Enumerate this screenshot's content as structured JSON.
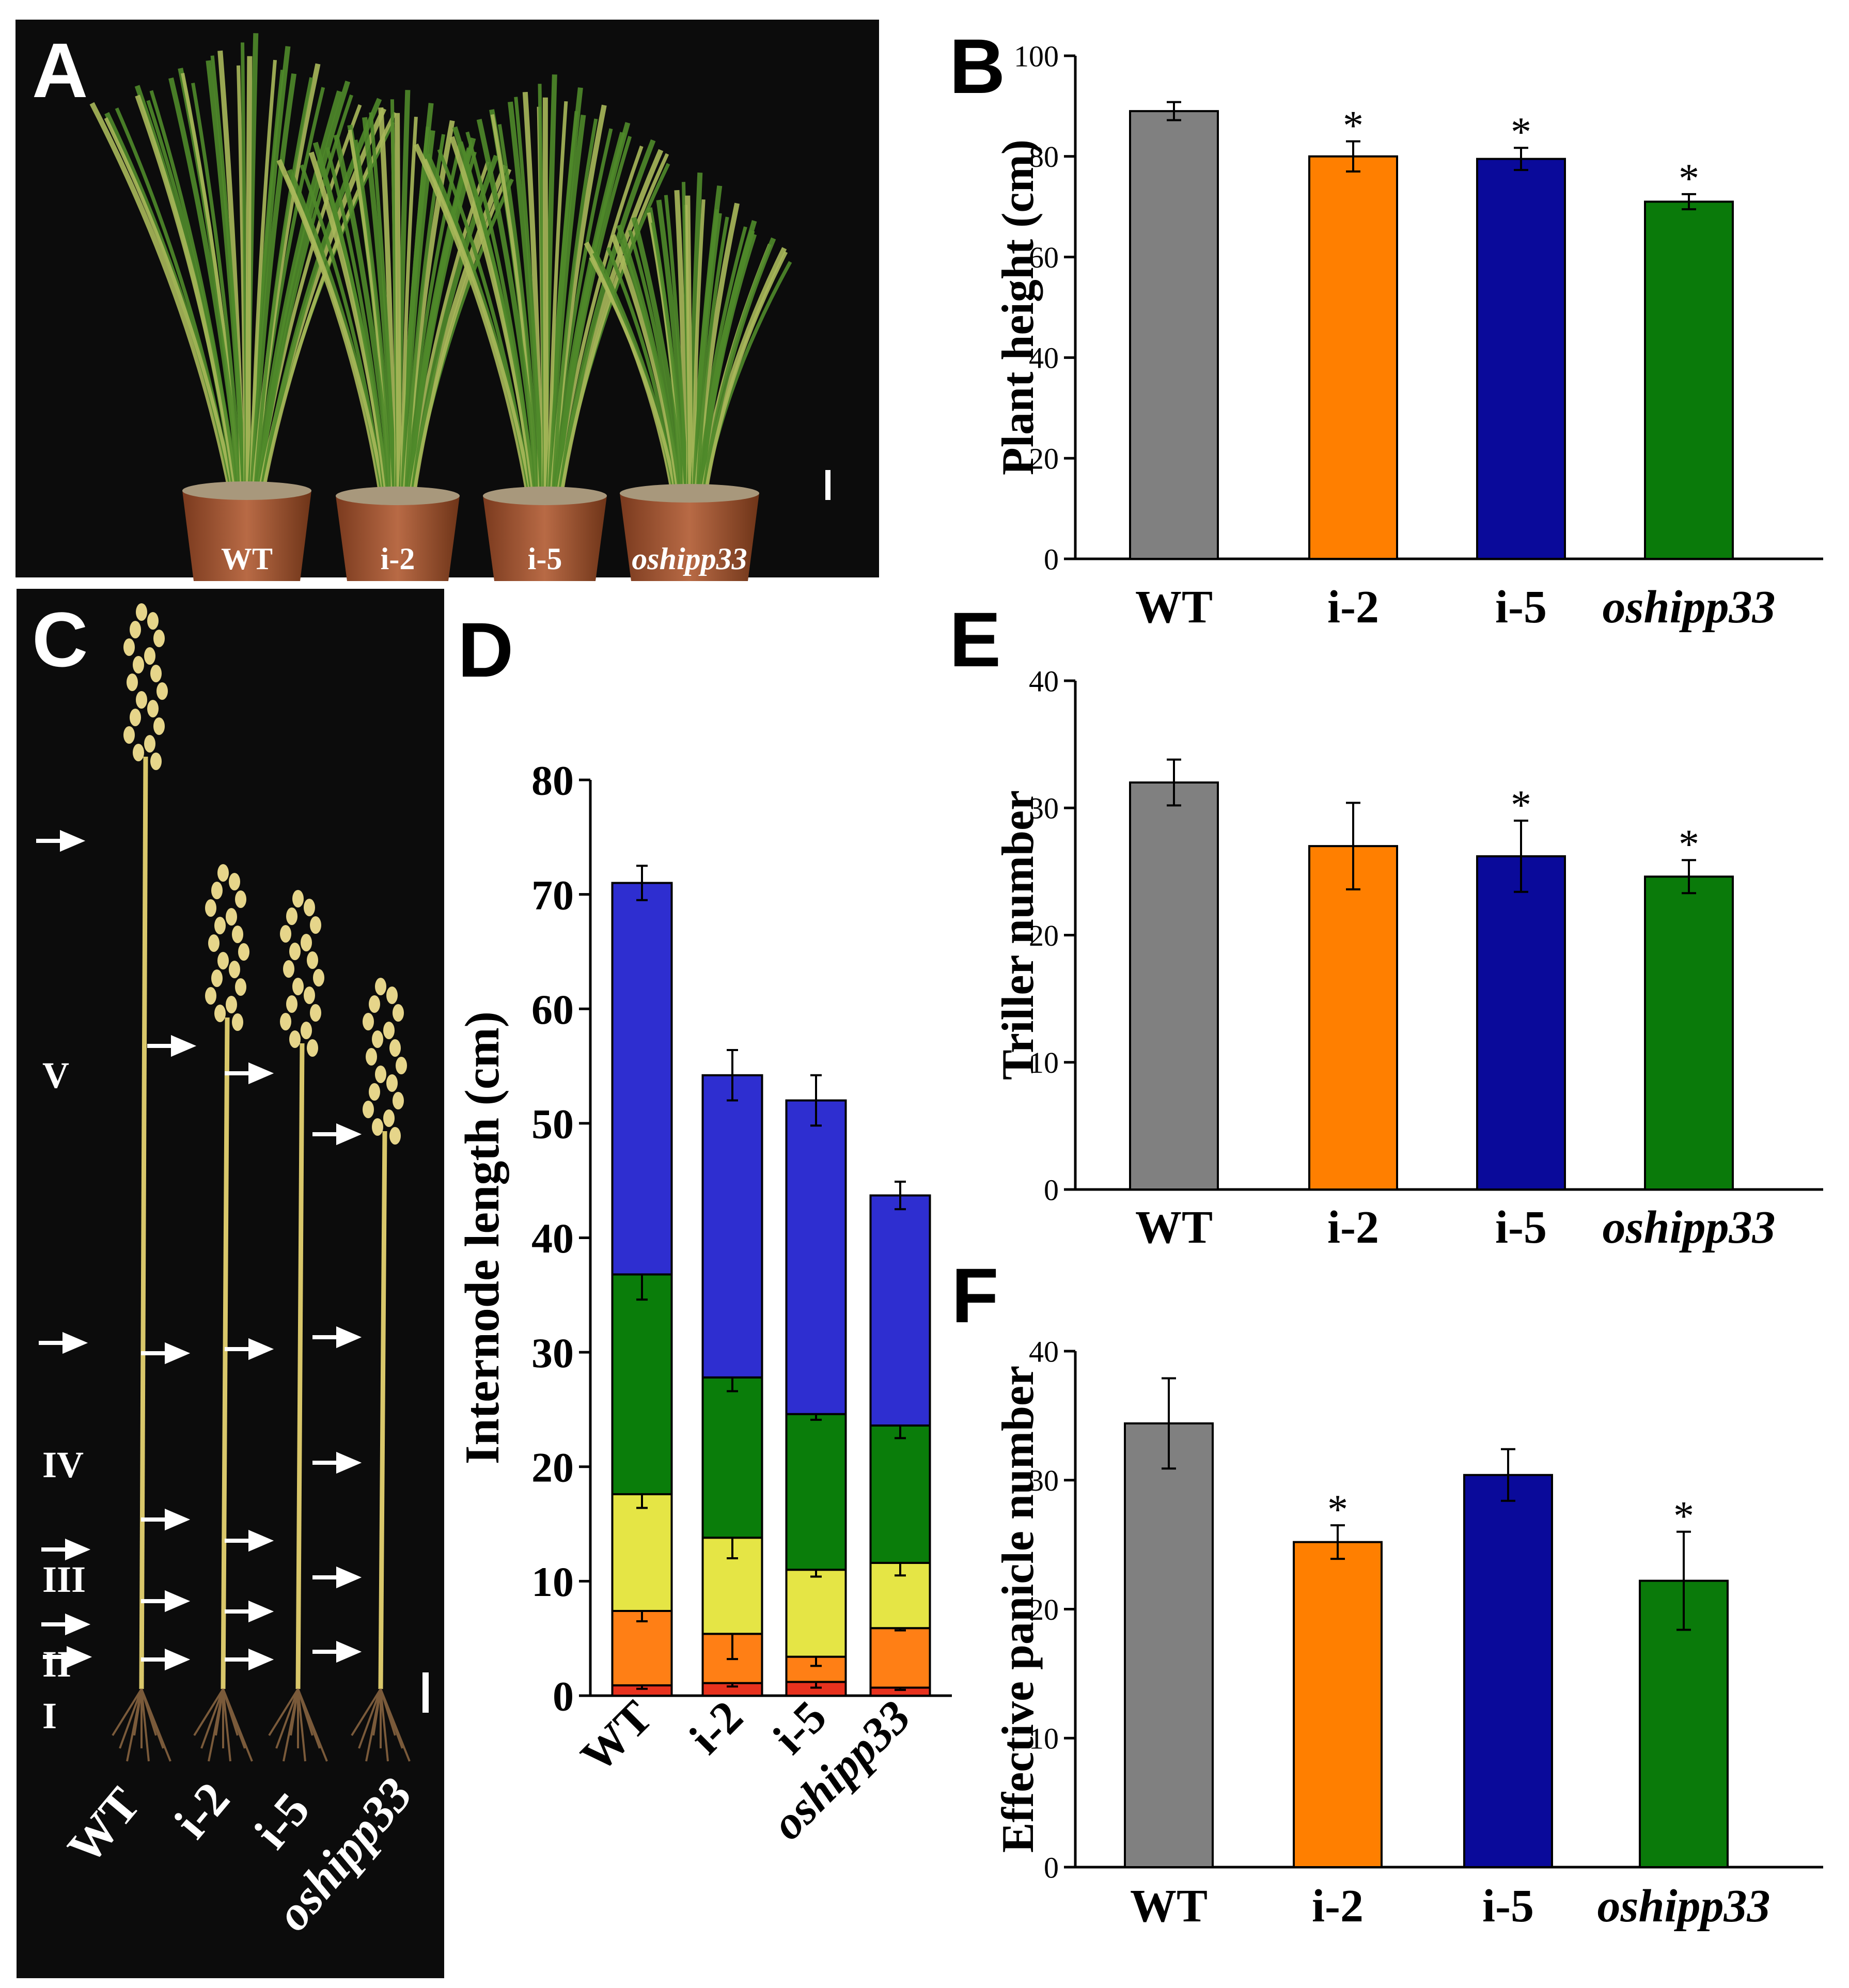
{
  "panel_labels": [
    "A",
    "B",
    "C",
    "D",
    "E",
    "F"
  ],
  "photo_A": {
    "pot_labels": [
      "WT",
      "i-2",
      "i-5",
      "oshipp33"
    ]
  },
  "photo_C": {
    "internode_labels": [
      "V",
      "IV",
      "III",
      "II",
      "I"
    ],
    "sample_labels": [
      "WT",
      "i-2",
      "i-5",
      "oshipp33"
    ]
  },
  "colors": {
    "WT": "#808080",
    "i-2": "#ff7f00",
    "i-5": "#0a0a9a",
    "oshipp33": "#0a7a0a",
    "seg_I": "#e8321e",
    "seg_II": "#ff7f15",
    "seg_III": "#e5e545",
    "seg_IV": "#0a7d0a",
    "seg_V": "#2e2ed0"
  },
  "chart_data": [
    {
      "id": "B",
      "type": "bar",
      "categories": [
        "WT",
        "i-2",
        "i-5",
        "oshipp33"
      ],
      "values": [
        89,
        80,
        79.5,
        71
      ],
      "errors": [
        1.8,
        3,
        2.2,
        1.5
      ],
      "significant": [
        false,
        true,
        true,
        true
      ],
      "sig_marker": "*",
      "ylabel": "Plant height (cm)",
      "ylim": [
        0,
        100
      ],
      "yticks": [
        0,
        20,
        40,
        60,
        80,
        100
      ],
      "ytick_labels": [
        "0",
        "20",
        "40",
        "60",
        "80",
        "100"
      ]
    },
    {
      "id": "D",
      "type": "bar",
      "stacked": true,
      "categories": [
        "WT",
        "i-2",
        "i-5",
        "oshipp33"
      ],
      "series": [
        {
          "name": "I",
          "values": [
            0.9,
            1.1,
            1.2,
            0.7
          ],
          "errors": [
            0.3,
            0.3,
            0.5,
            0.2
          ]
        },
        {
          "name": "II",
          "values": [
            6.5,
            4.3,
            2.2,
            5.2
          ],
          "errors": [
            0.9,
            2.2,
            0.8,
            0.2
          ]
        },
        {
          "name": "III",
          "values": [
            10.2,
            8.4,
            7.6,
            5.7
          ],
          "errors": [
            1.2,
            1.8,
            0.6,
            1.1
          ]
        },
        {
          "name": "IV",
          "values": [
            19.2,
            14,
            13.6,
            12
          ],
          "errors": [
            2.2,
            1.2,
            0.5,
            1.1
          ]
        },
        {
          "name": "V",
          "values": [
            34.2,
            26.4,
            27.4,
            20.1
          ],
          "errors": [
            1.5,
            2.2,
            2.2,
            1.2
          ]
        }
      ],
      "totals": [
        71,
        54.2,
        52,
        43.7
      ],
      "ylabel": "Internode length (cm)",
      "ylim": [
        0,
        80
      ],
      "yticks": [
        0,
        10,
        20,
        30,
        40,
        50,
        60,
        70,
        80
      ],
      "ytick_labels": [
        "0",
        "10",
        "20",
        "30",
        "40",
        "50",
        "60",
        "70",
        "80"
      ]
    },
    {
      "id": "E",
      "type": "bar",
      "categories": [
        "WT",
        "i-2",
        "i-5",
        "oshipp33"
      ],
      "values": [
        32,
        27,
        26.2,
        24.6
      ],
      "errors": [
        1.8,
        3.4,
        2.8,
        1.3
      ],
      "significant": [
        false,
        false,
        true,
        true
      ],
      "sig_marker": "*",
      "ylabel": "Triller number",
      "ylim": [
        0,
        40
      ],
      "yticks": [
        0,
        10,
        20,
        30,
        40
      ],
      "ytick_labels": [
        "0",
        "10",
        "20",
        "30",
        "40"
      ]
    },
    {
      "id": "F",
      "type": "bar",
      "categories": [
        "WT",
        "i-2",
        "i-5",
        "oshipp33"
      ],
      "values": [
        34.4,
        25.2,
        30.4,
        22.2
      ],
      "errors": [
        3.5,
        1.3,
        2,
        3.8
      ],
      "significant": [
        false,
        true,
        false,
        true
      ],
      "sig_marker": "*",
      "ylabel": "Effective panicle number",
      "ylim": [
        0,
        40
      ],
      "yticks": [
        0,
        10,
        20,
        30,
        40
      ],
      "ytick_labels": [
        "0",
        "10",
        "20",
        "30",
        "40"
      ]
    }
  ]
}
